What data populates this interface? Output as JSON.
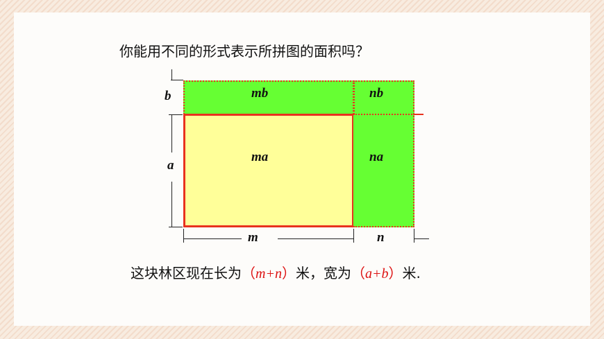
{
  "question": "你能用不同的形式表示所拼图的面积吗？",
  "diagram": {
    "cells": {
      "mb": "mb",
      "nb": "nb",
      "ma": "ma",
      "na": "na"
    },
    "dimensions": {
      "b": "b",
      "a": "a",
      "m": "m",
      "n": "n"
    },
    "colors": {
      "green": "#66ff33",
      "yellow": "#ffff99",
      "border": "#e8321e"
    }
  },
  "answer": {
    "prefix": "这块林区现在长为",
    "length_open": "（",
    "length_expr": "m+n",
    "length_close": "）",
    "middle": "米，宽为",
    "width_open": "（",
    "width_expr": "a+b",
    "width_close": "）",
    "suffix": "米."
  }
}
